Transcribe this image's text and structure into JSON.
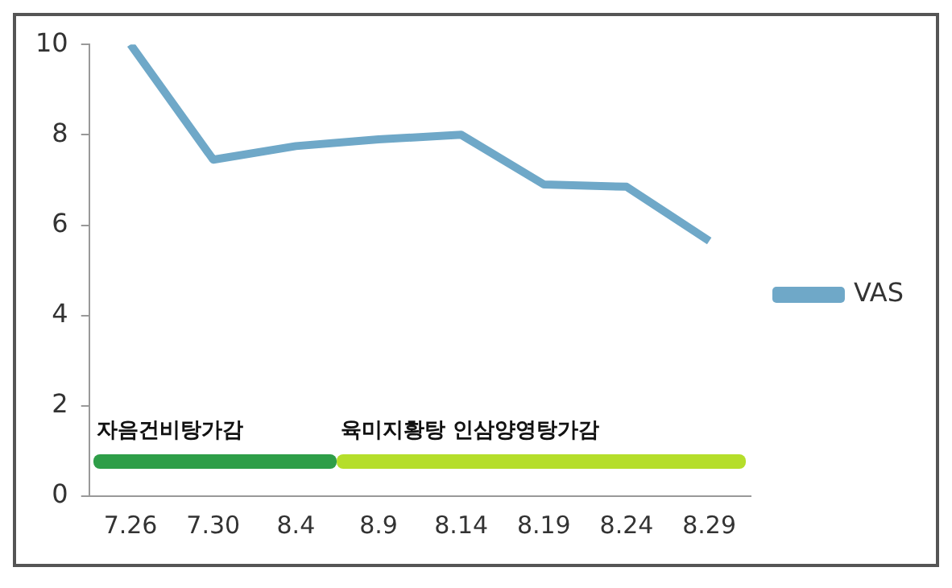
{
  "chart_data": {
    "type": "line",
    "categories": [
      "7.26",
      "7.30",
      "8.4",
      "8.9",
      "8.14",
      "8.19",
      "8.24",
      "8.29"
    ],
    "series": [
      {
        "name": "VAS",
        "color": "#6fa8c8",
        "values": [
          10,
          7.45,
          7.75,
          7.9,
          8.0,
          6.9,
          6.85,
          5.65
        ]
      }
    ],
    "ylim": [
      0,
      10
    ],
    "yticks": [
      0,
      2,
      4,
      6,
      8,
      10
    ],
    "grid": false,
    "legend": "right",
    "marker": "none",
    "annotations": [
      "자음건비탕가감",
      "육미지황탕 인삼양영탕가감"
    ]
  }
}
